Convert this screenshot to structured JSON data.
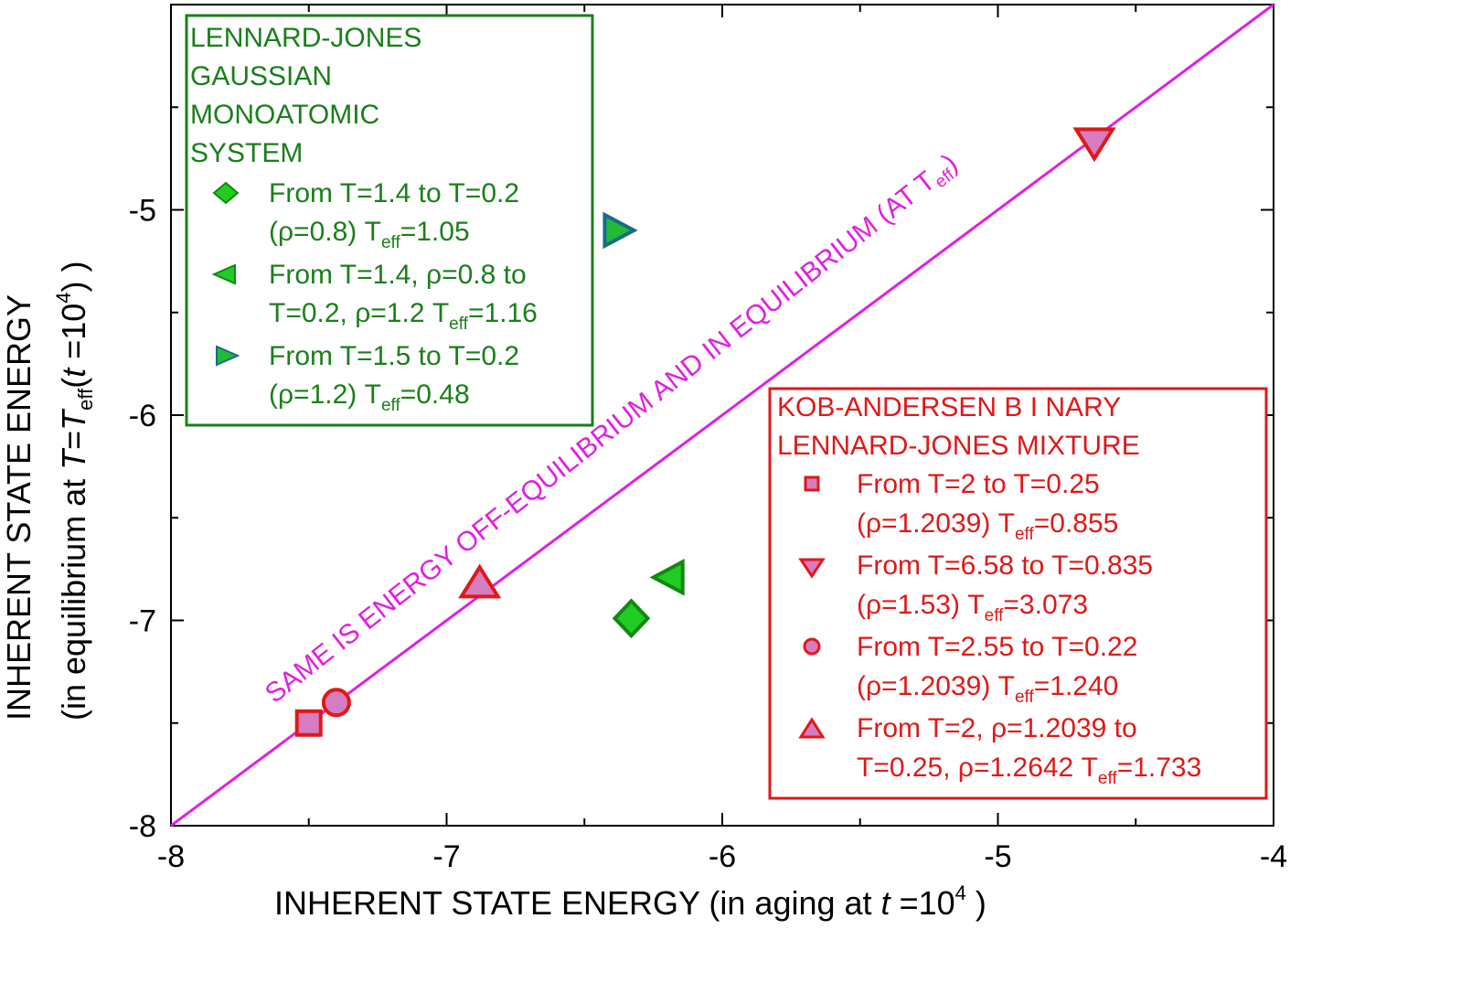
{
  "chart_data": {
    "type": "scatter",
    "xlabel": {
      "main": "INHERENT STATE    ENERGY (in aging at  ",
      "var": "t",
      "eq": " =10",
      "sup": "4",
      "close": " )"
    },
    "ylabel": {
      "line1": "INHERENT STATE    ENERGY",
      "line2_a": "(in equilibrium at  ",
      "line2_T": "T",
      "line2_eq": "=",
      "line2_Teff": "T",
      "line2_sub": "eff",
      "line2_paren": "(",
      "line2_t": "t",
      "line2_b": " =10",
      "line2_sup": "4",
      "line2_c": ") )"
    },
    "xlim": [
      -8,
      -4
    ],
    "ylim": [
      -8,
      -4
    ],
    "x_ticks": [
      "-8",
      "-7",
      "-6",
      "-5",
      "-4"
    ],
    "y_ticks": [
      "-8",
      "-7",
      "-6",
      "-5"
    ],
    "diagonal": {
      "label_main": "SAME IS ENERGY OFF-EQUILIBRIUM AND IN EQUILIBRIUM (AT T",
      "label_sub": "eff",
      "label_close": ")",
      "color": "#e020e0"
    },
    "series": [
      {
        "group": "lj",
        "marker": "diamond",
        "fill": "#22cc22",
        "stroke": "#118811",
        "x": -6.33,
        "y": -6.99
      },
      {
        "group": "lj",
        "marker": "triangle-left",
        "fill": "#22cc22",
        "stroke": "#118811",
        "x": -6.19,
        "y": -6.79
      },
      {
        "group": "lj",
        "marker": "triangle-right",
        "fill": "#22bb33",
        "stroke": "#1a6b8a",
        "x": -6.38,
        "y": -5.1
      },
      {
        "group": "ka",
        "marker": "square",
        "fill": "#d67cc0",
        "stroke": "#e01818",
        "x": -7.5,
        "y": -7.5
      },
      {
        "group": "ka",
        "marker": "triangle-down",
        "fill": "#d67cc0",
        "stroke": "#e01818",
        "x": -4.65,
        "y": -4.67
      },
      {
        "group": "ka",
        "marker": "circle",
        "fill": "#d67cc0",
        "stroke": "#e01818",
        "x": -7.4,
        "y": -7.4
      },
      {
        "group": "ka",
        "marker": "triangle-up",
        "fill": "#d67cc0",
        "stroke": "#e01818",
        "x": -6.88,
        "y": -6.83
      }
    ],
    "legend_lj": {
      "color": "#1a7f1a",
      "title": [
        "LENNARD-JONES",
        "GAUSSIAN",
        "MONOATOMIC",
        "SYSTEM"
      ],
      "entries": [
        {
          "l1": "From T=1.4 to T=0.2",
          "l2a": "(ρ=0.8) T",
          "l2sub": "eff",
          "l2b": "=1.05"
        },
        {
          "l1": "From T=1.4, ρ=0.8  to",
          "l2a": "T=0.2, ρ=1.2  T",
          "l2sub": "eff",
          "l2b": "=1.16"
        },
        {
          "l1": "From T=1.5 to T=0.2",
          "l2a": "(ρ=1.2) T",
          "l2sub": "eff",
          "l2b": "=0.48"
        }
      ]
    },
    "legend_ka": {
      "color": "#e01818",
      "title": [
        "KOB-ANDERSEN B I NARY",
        "LENNARD-JONES MIXTURE"
      ],
      "entries": [
        {
          "l1": "From T=2 to T=0.25",
          "l2a": "(ρ=1.2039) T",
          "l2sub": "eff",
          "l2b": "=0.855"
        },
        {
          "l1": "From T=6.58 to T=0.835",
          "l2a": " (ρ=1.53) T",
          "l2sub": "eff",
          "l2b": "=3.073"
        },
        {
          "l1": "From T=2.55 to T=0.22",
          "l2a": "(ρ=1.2039) T",
          "l2sub": "eff",
          "l2b": "=1.240"
        },
        {
          "l1": "From T=2, ρ=1.2039  to",
          "l2a": " T=0.25, ρ=1.2642 T",
          "l2sub": "eff",
          "l2b": "=1.733"
        }
      ]
    }
  }
}
